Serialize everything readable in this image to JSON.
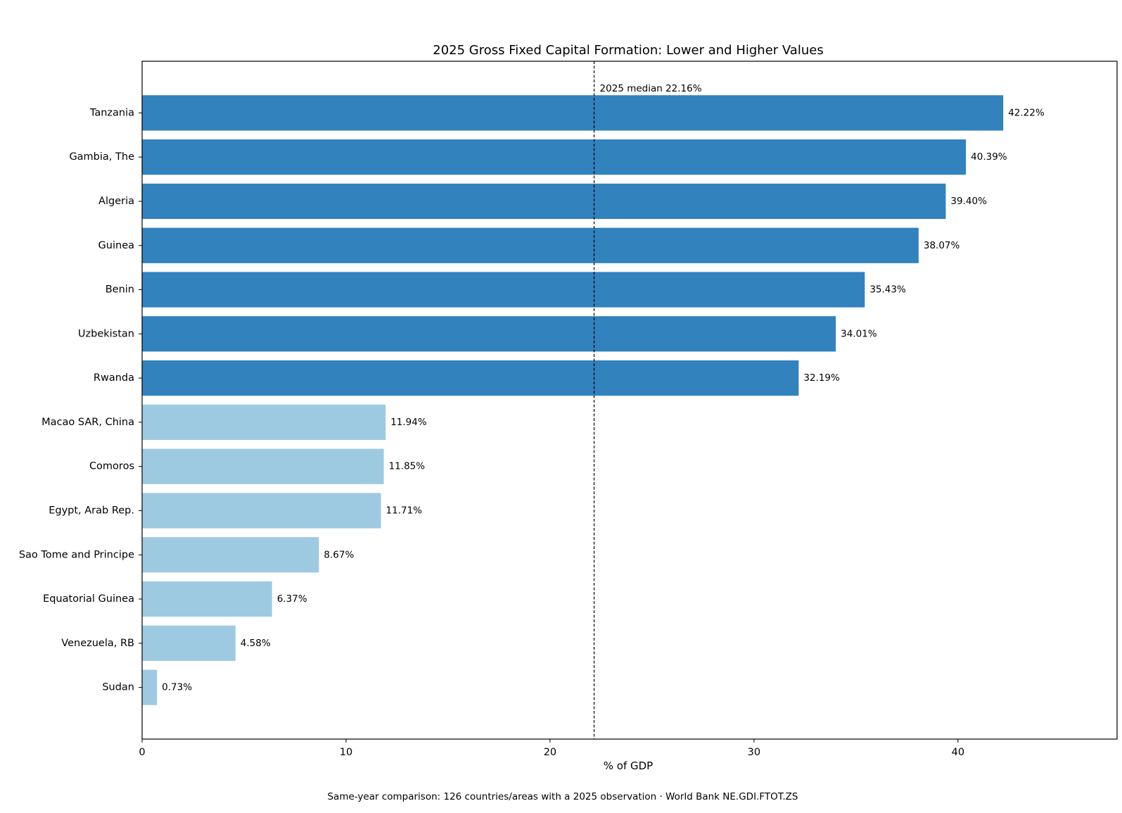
{
  "chart_data": {
    "type": "bar",
    "orientation": "horizontal",
    "title": "2025 Gross Fixed Capital Formation: Lower and Higher Values",
    "xlabel": "% of GDP",
    "ylabel": "",
    "xlim": [
      0,
      47.8
    ],
    "xticks": [
      0,
      10,
      20,
      30,
      40
    ],
    "grid": false,
    "value_suffix": "%",
    "categories": [
      "Tanzania",
      "Gambia, The",
      "Algeria",
      "Guinea",
      "Benin",
      "Uzbekistan",
      "Rwanda",
      "Macao SAR, China",
      "Comoros",
      "Egypt, Arab Rep.",
      "Sao Tome and Principe",
      "Equatorial Guinea",
      "Venezuela, RB",
      "Sudan"
    ],
    "values": [
      42.22,
      40.39,
      39.4,
      38.07,
      35.43,
      34.01,
      32.19,
      11.94,
      11.85,
      11.71,
      8.67,
      6.37,
      4.58,
      0.73
    ],
    "value_labels": [
      "42.22%",
      "40.39%",
      "39.40%",
      "38.07%",
      "35.43%",
      "34.01%",
      "32.19%",
      "11.94%",
      "11.85%",
      "11.71%",
      "8.67%",
      "6.37%",
      "4.58%",
      "0.73%"
    ],
    "groups": [
      "higher",
      "higher",
      "higher",
      "higher",
      "higher",
      "higher",
      "higher",
      "lower",
      "lower",
      "lower",
      "lower",
      "lower",
      "lower",
      "lower"
    ],
    "colors": {
      "higher": "#3182bd",
      "lower": "#9ecae1"
    },
    "reference_line": {
      "value": 22.16,
      "label": "2025 median 22.16%",
      "style": "dashed",
      "color": "#000000"
    },
    "note": "Same-year comparison: 126 countries/areas with a 2025 observation · World Bank NE.GDI.FTOT.ZS"
  }
}
